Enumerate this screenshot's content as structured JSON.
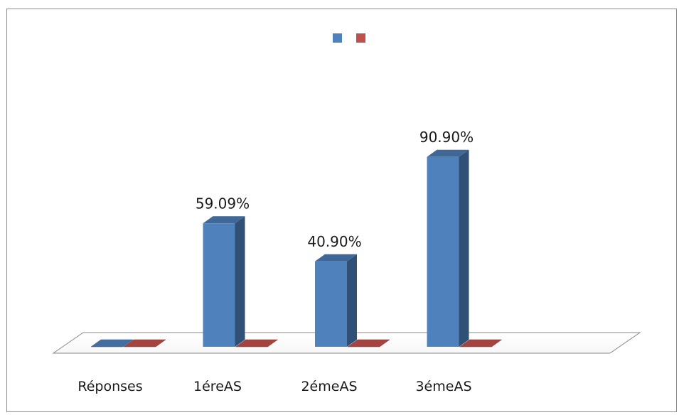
{
  "chart_data": {
    "type": "bar",
    "categories": [
      "Réponses",
      "1éreAS",
      "2émeAS",
      "3émeAS"
    ],
    "series": [
      {
        "values": [
          0,
          59.09,
          40.9,
          90.9
        ],
        "color": "#4f81bd",
        "value_labels": [
          "",
          "59.09%",
          "40.90%",
          "90.90%"
        ]
      },
      {
        "values": [
          0,
          0,
          0,
          0
        ],
        "color": "#c0504d"
      }
    ],
    "ylim": [
      0,
      100
    ],
    "grid": false,
    "legend": "top-center",
    "style": "3d-clustered-column"
  }
}
